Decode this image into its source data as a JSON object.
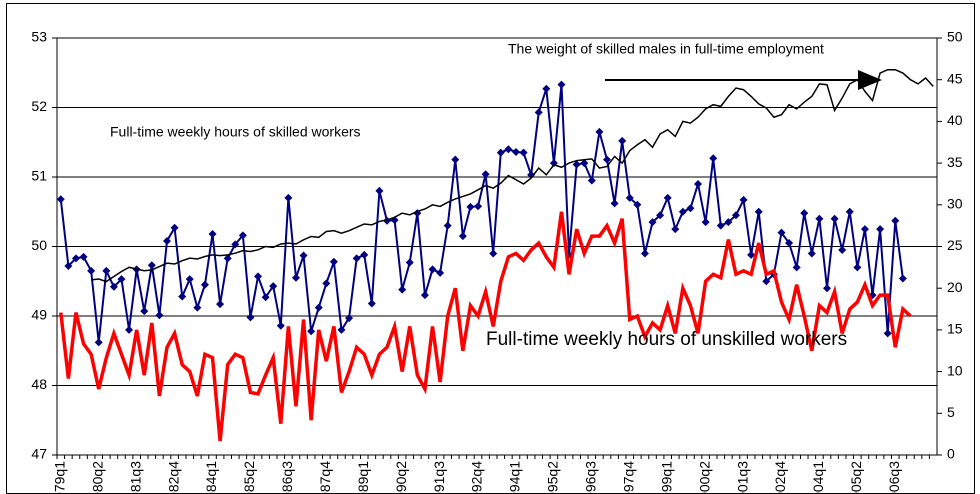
{
  "chart_data": {
    "type": "line",
    "categories": [
      "1979q1",
      null,
      null,
      null,
      null,
      "1980q2",
      null,
      null,
      null,
      null,
      "1981q3",
      null,
      null,
      null,
      null,
      "1982q4",
      null,
      null,
      null,
      null,
      "1984q1",
      null,
      null,
      null,
      null,
      "1985q2",
      null,
      null,
      null,
      null,
      "1986q3",
      null,
      null,
      null,
      null,
      "1987q4",
      null,
      null,
      null,
      null,
      "1989q1",
      null,
      null,
      null,
      null,
      "1990q2",
      null,
      null,
      null,
      null,
      "1991q3",
      null,
      null,
      null,
      null,
      "1992q4",
      null,
      null,
      null,
      null,
      "1994q1",
      null,
      null,
      null,
      null,
      "1995q2",
      null,
      null,
      null,
      null,
      "1996q3",
      null,
      null,
      null,
      null,
      "1997q4",
      null,
      null,
      null,
      null,
      "1999q1",
      null,
      null,
      null,
      null,
      "2000q2",
      null,
      null,
      null,
      null,
      "2001q3",
      null,
      null,
      null,
      null,
      "2002q4",
      null,
      null,
      null,
      null,
      "2004q1",
      null,
      null,
      null,
      null,
      "2005q2",
      null,
      null,
      null,
      null,
      "2006q3",
      null,
      null,
      null,
      null,
      null
    ],
    "series": [
      {
        "name": "Full-time weekly hours of skilled workers",
        "color": "#000080",
        "marker": "diamond",
        "values": [
          50.68,
          49.72,
          49.83,
          49.85,
          49.65,
          48.62,
          49.65,
          49.42,
          49.53,
          48.8,
          49.67,
          49.07,
          49.73,
          49.01,
          50.08,
          50.27,
          49.28,
          49.53,
          49.12,
          49.45,
          50.18,
          49.17,
          49.83,
          50.03,
          50.16,
          48.98,
          49.57,
          49.27,
          49.43,
          48.86,
          50.7,
          49.55,
          49.87,
          48.78,
          49.12,
          49.47,
          49.78,
          48.8,
          48.97,
          49.83,
          49.88,
          49.18,
          50.8,
          50.37,
          50.38,
          49.38,
          49.77,
          50.48,
          49.3,
          49.67,
          49.62,
          50.3,
          51.25,
          50.15,
          50.57,
          50.58,
          51.04,
          49.9,
          51.35,
          51.4,
          51.36,
          51.35,
          51.03,
          51.93,
          52.27,
          51.2,
          52.33,
          49.88,
          51.18,
          51.2,
          50.95,
          51.65,
          51.25,
          50.62,
          51.52,
          50.7,
          50.6,
          49.9,
          50.35,
          50.45,
          50.7,
          50.25,
          50.5,
          50.55,
          50.9,
          50.35,
          51.27,
          50.3,
          50.35,
          50.45,
          50.67,
          49.88,
          50.5,
          49.5,
          49.6,
          50.2,
          50.05,
          49.7,
          50.48,
          49.9,
          50.4,
          49.4,
          50.4,
          49.95,
          50.5,
          49.7,
          50.25,
          49.3,
          50.25,
          48.75,
          50.37,
          49.54,
          null,
          null,
          null,
          null
        ]
      },
      {
        "name": "Full-time weekly hours of unskilled workers",
        "color": "#ff0000",
        "values": [
          49.05,
          48.1,
          49.05,
          48.6,
          48.45,
          47.95,
          48.4,
          48.75,
          48.45,
          48.15,
          48.8,
          48.15,
          48.9,
          47.85,
          48.55,
          48.75,
          48.3,
          48.2,
          47.85,
          48.45,
          48.4,
          47.2,
          48.3,
          48.45,
          48.4,
          47.9,
          47.88,
          48.15,
          48.4,
          47.45,
          48.85,
          47.7,
          48.95,
          47.5,
          48.8,
          48.35,
          48.85,
          47.9,
          48.2,
          48.55,
          48.45,
          48.15,
          48.45,
          48.55,
          48.85,
          48.2,
          48.85,
          48.15,
          47.95,
          48.85,
          48.05,
          49.0,
          49.4,
          48.5,
          49.15,
          49.0,
          49.35,
          48.85,
          49.5,
          49.85,
          49.9,
          49.8,
          49.95,
          50.05,
          49.85,
          49.7,
          50.5,
          49.6,
          50.25,
          49.9,
          50.15,
          50.15,
          50.3,
          50.05,
          50.4,
          48.95,
          49.0,
          48.7,
          48.9,
          48.8,
          49.15,
          48.75,
          49.4,
          49.15,
          48.75,
          49.5,
          49.6,
          49.55,
          50.1,
          49.6,
          49.65,
          49.6,
          50.05,
          49.6,
          49.65,
          49.2,
          48.95,
          49.45,
          49.0,
          48.5,
          49.15,
          49.05,
          49.35,
          48.75,
          49.1,
          49.2,
          49.45,
          49.15,
          49.3,
          49.3,
          48.55,
          49.1,
          49.0,
          null,
          null,
          null
        ]
      },
      {
        "name": "The weight of skilled males in full-time employment",
        "color": "#000000",
        "axis": "y2",
        "values": [
          null,
          null,
          null,
          null,
          21.0,
          21.1,
          20.8,
          21.4,
          22.0,
          22.5,
          22.3,
          22.1,
          22.2,
          22.6,
          23.0,
          22.9,
          23.3,
          23.6,
          23.5,
          23.8,
          24.0,
          23.9,
          24.0,
          24.2,
          24.5,
          24.4,
          24.6,
          25.0,
          24.9,
          25.3,
          25.4,
          25.3,
          25.8,
          26.2,
          26.1,
          26.8,
          26.9,
          26.6,
          26.9,
          27.3,
          27.7,
          27.6,
          28.0,
          28.2,
          28.5,
          29.0,
          28.8,
          29.2,
          29.5,
          30.0,
          29.8,
          30.3,
          30.7,
          31.0,
          31.3,
          31.8,
          32.3,
          32.0,
          32.6,
          33.5,
          33.0,
          32.5,
          33.2,
          34.4,
          33.6,
          34.8,
          34.5,
          35.0,
          35.3,
          35.4,
          35.5,
          34.4,
          34.6,
          35.8,
          35.0,
          36.5,
          37.2,
          37.8,
          36.9,
          38.5,
          39.0,
          38.2,
          40.0,
          39.8,
          40.5,
          41.5,
          42.0,
          41.8,
          43.0,
          44.0,
          43.8,
          43.0,
          42.1,
          41.6,
          40.5,
          40.8,
          42.0,
          41.5,
          42.3,
          43.0,
          44.5,
          44.4,
          41.3,
          42.8,
          44.5,
          45.0,
          43.6,
          42.5,
          45.8,
          46.2,
          46.2,
          45.8,
          45.0,
          44.5,
          45.2,
          44.2
        ]
      }
    ],
    "ylim": [
      47,
      53
    ],
    "yticks": [
      47,
      48,
      49,
      50,
      51,
      52,
      53
    ],
    "y2lim": [
      0,
      50
    ],
    "y2ticks": [
      0,
      5,
      10,
      15,
      20,
      25,
      30,
      35,
      40,
      45,
      50
    ],
    "grid": true
  }
}
